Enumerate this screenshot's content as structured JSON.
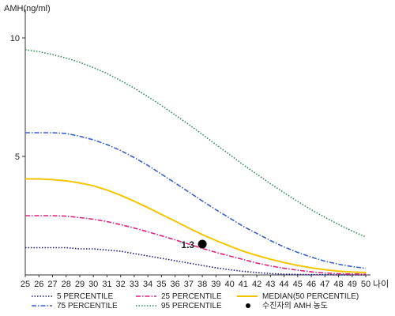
{
  "chart_data": {
    "type": "line",
    "title": "",
    "ylabel": "AMH(ng/ml)",
    "xlabel": "나이",
    "xlim": [
      25,
      50
    ],
    "ylim": [
      0,
      11
    ],
    "x_ticks": [
      25,
      26,
      27,
      28,
      29,
      30,
      31,
      32,
      33,
      34,
      35,
      36,
      37,
      38,
      39,
      40,
      41,
      42,
      43,
      44,
      45,
      46,
      47,
      48,
      49,
      50
    ],
    "y_ticks": [
      5,
      10
    ],
    "grid": false,
    "legend_position": "bottom",
    "series": [
      {
        "name": "5 PERCENTILE",
        "color": "#1a1a8c",
        "style": "dotted",
        "points": [
          [
            25,
            1.15
          ],
          [
            26,
            1.15
          ],
          [
            27,
            1.15
          ],
          [
            28,
            1.15
          ],
          [
            29,
            1.1
          ],
          [
            30,
            1.1
          ],
          [
            31,
            1.05
          ],
          [
            32,
            1.0
          ],
          [
            33,
            0.9
          ],
          [
            34,
            0.8
          ],
          [
            35,
            0.7
          ],
          [
            36,
            0.6
          ],
          [
            37,
            0.5
          ],
          [
            38,
            0.4
          ],
          [
            39,
            0.3
          ],
          [
            40,
            0.22
          ],
          [
            41,
            0.15
          ],
          [
            42,
            0.1
          ],
          [
            43,
            0.06
          ],
          [
            44,
            0.03
          ],
          [
            45,
            0.02
          ],
          [
            46,
            0.01
          ],
          [
            47,
            0.01
          ],
          [
            48,
            0.0
          ],
          [
            49,
            0.0
          ],
          [
            50,
            0.0
          ]
        ]
      },
      {
        "name": "25 PERCENTILE",
        "color": "#e0207a",
        "style": "dashdot",
        "points": [
          [
            25,
            2.5
          ],
          [
            26,
            2.5
          ],
          [
            27,
            2.5
          ],
          [
            28,
            2.48
          ],
          [
            29,
            2.42
          ],
          [
            30,
            2.35
          ],
          [
            31,
            2.25
          ],
          [
            32,
            2.12
          ],
          [
            33,
            1.98
          ],
          [
            34,
            1.82
          ],
          [
            35,
            1.65
          ],
          [
            36,
            1.48
          ],
          [
            37,
            1.3
          ],
          [
            38,
            1.12
          ],
          [
            39,
            0.95
          ],
          [
            40,
            0.8
          ],
          [
            41,
            0.65
          ],
          [
            42,
            0.5
          ],
          [
            43,
            0.38
          ],
          [
            44,
            0.28
          ],
          [
            45,
            0.2
          ],
          [
            46,
            0.13
          ],
          [
            47,
            0.08
          ],
          [
            48,
            0.05
          ],
          [
            49,
            0.04
          ],
          [
            50,
            0.03
          ]
        ]
      },
      {
        "name": "MEDIAN(50 PERCENTILE)",
        "color": "#f2c500",
        "style": "solid",
        "points": [
          [
            25,
            4.05
          ],
          [
            26,
            4.05
          ],
          [
            27,
            4.02
          ],
          [
            28,
            3.97
          ],
          [
            29,
            3.88
          ],
          [
            30,
            3.76
          ],
          [
            31,
            3.58
          ],
          [
            32,
            3.36
          ],
          [
            33,
            3.11
          ],
          [
            34,
            2.84
          ],
          [
            35,
            2.55
          ],
          [
            36,
            2.27
          ],
          [
            37,
            1.98
          ],
          [
            38,
            1.7
          ],
          [
            39,
            1.45
          ],
          [
            40,
            1.22
          ],
          [
            41,
            1.0
          ],
          [
            42,
            0.82
          ],
          [
            43,
            0.66
          ],
          [
            44,
            0.52
          ],
          [
            45,
            0.4
          ],
          [
            46,
            0.3
          ],
          [
            47,
            0.22
          ],
          [
            48,
            0.16
          ],
          [
            49,
            0.12
          ],
          [
            50,
            0.1
          ]
        ]
      },
      {
        "name": "75 PERCENTILE",
        "color": "#3a5fcd",
        "style": "dashdot",
        "points": [
          [
            25,
            6.0
          ],
          [
            26,
            6.0
          ],
          [
            27,
            6.0
          ],
          [
            28,
            5.97
          ],
          [
            29,
            5.85
          ],
          [
            30,
            5.7
          ],
          [
            31,
            5.5
          ],
          [
            32,
            5.25
          ],
          [
            33,
            4.95
          ],
          [
            34,
            4.62
          ],
          [
            35,
            4.25
          ],
          [
            36,
            3.88
          ],
          [
            37,
            3.5
          ],
          [
            38,
            3.12
          ],
          [
            39,
            2.75
          ],
          [
            40,
            2.4
          ],
          [
            41,
            2.05
          ],
          [
            42,
            1.75
          ],
          [
            43,
            1.45
          ],
          [
            44,
            1.18
          ],
          [
            45,
            0.95
          ],
          [
            46,
            0.75
          ],
          [
            47,
            0.58
          ],
          [
            48,
            0.45
          ],
          [
            49,
            0.35
          ],
          [
            50,
            0.28
          ]
        ]
      },
      {
        "name": "95 PERCENTILE",
        "color": "#2e8b57",
        "style": "dotted",
        "points": [
          [
            25,
            9.5
          ],
          [
            26,
            9.42
          ],
          [
            27,
            9.3
          ],
          [
            28,
            9.15
          ],
          [
            29,
            8.97
          ],
          [
            30,
            8.75
          ],
          [
            31,
            8.5
          ],
          [
            32,
            8.2
          ],
          [
            33,
            7.88
          ],
          [
            34,
            7.52
          ],
          [
            35,
            7.15
          ],
          [
            36,
            6.75
          ],
          [
            37,
            6.35
          ],
          [
            38,
            5.93
          ],
          [
            39,
            5.5
          ],
          [
            40,
            5.08
          ],
          [
            41,
            4.65
          ],
          [
            42,
            4.25
          ],
          [
            43,
            3.85
          ],
          [
            44,
            3.47
          ],
          [
            45,
            3.1
          ],
          [
            46,
            2.75
          ],
          [
            47,
            2.43
          ],
          [
            48,
            2.13
          ],
          [
            49,
            1.85
          ],
          [
            50,
            1.6
          ]
        ]
      }
    ],
    "legend_items": [
      {
        "label": "5 PERCENTILE",
        "series": 0
      },
      {
        "label": "25 PERCENTILE",
        "series": 1
      },
      {
        "label": "MEDIAN(50 PERCENTILE)",
        "series": 2
      },
      {
        "label": "75 PERCENTILE",
        "series": 3
      },
      {
        "label": "95 PERCENTILE",
        "series": 4
      },
      {
        "label": "수진자의 AMH 농도",
        "marker": true
      }
    ],
    "marker": {
      "x": 38,
      "y": 1.3,
      "label": "1.3",
      "color": "#000000"
    }
  }
}
